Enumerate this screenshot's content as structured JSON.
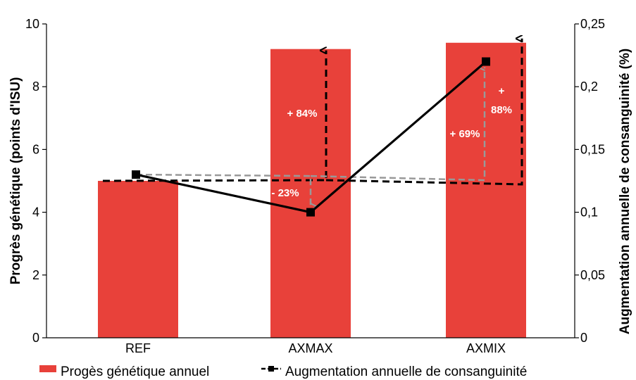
{
  "chart_data": {
    "type": "bar",
    "categories": [
      "REF",
      "AXMAX",
      "AXMIX"
    ],
    "series": [
      {
        "name": "Progès génétique annuel",
        "axis": "left",
        "chart_type": "bar",
        "color": "#e8413a",
        "values": [
          5.0,
          9.2,
          9.4
        ]
      },
      {
        "name": "Augmentation annuelle de consanguinité",
        "axis": "right",
        "chart_type": "line",
        "color": "#000000",
        "values": [
          0.13,
          0.1,
          0.22
        ]
      }
    ],
    "ylabel": "Progrès génétique (points d'ISU)",
    "y2label": "Augmentation annuelle de consanguinité (%)",
    "ylim": [
      0,
      10
    ],
    "y2lim": [
      0,
      0.25
    ],
    "yticks": [
      "0",
      "2",
      "4",
      "6",
      "8",
      "10"
    ],
    "y2ticks": [
      "0",
      "0,05",
      "0,1",
      "0,15",
      "0,2",
      "0,25"
    ],
    "grid": false,
    "legend": "bottom",
    "annotations": [
      {
        "text": "+ 84%",
        "category": "AXMAX",
        "series": "Progès génétique annuel",
        "color": "#000000",
        "style": "dashed-arrow-up"
      },
      {
        "text": "- 23%",
        "category": "AXMAX",
        "series": "Augmentation annuelle de consanguinité",
        "color": "#999999",
        "style": "dashed-arrow-down"
      },
      {
        "text": "+ 69%",
        "category": "AXMIX",
        "series": "Augmentation annuelle de consanguinité",
        "color": "#999999",
        "style": "dashed-arrow-up"
      },
      {
        "text": "+",
        "category": "AXMIX",
        "series": "Progès génétique annuel",
        "color": "#000000",
        "style": "dashed-arrow-up"
      },
      {
        "text": "88%",
        "category": "AXMIX",
        "series": "Progès génétique annuel",
        "color": "#000000",
        "style": "dashed-arrow-up"
      }
    ]
  }
}
